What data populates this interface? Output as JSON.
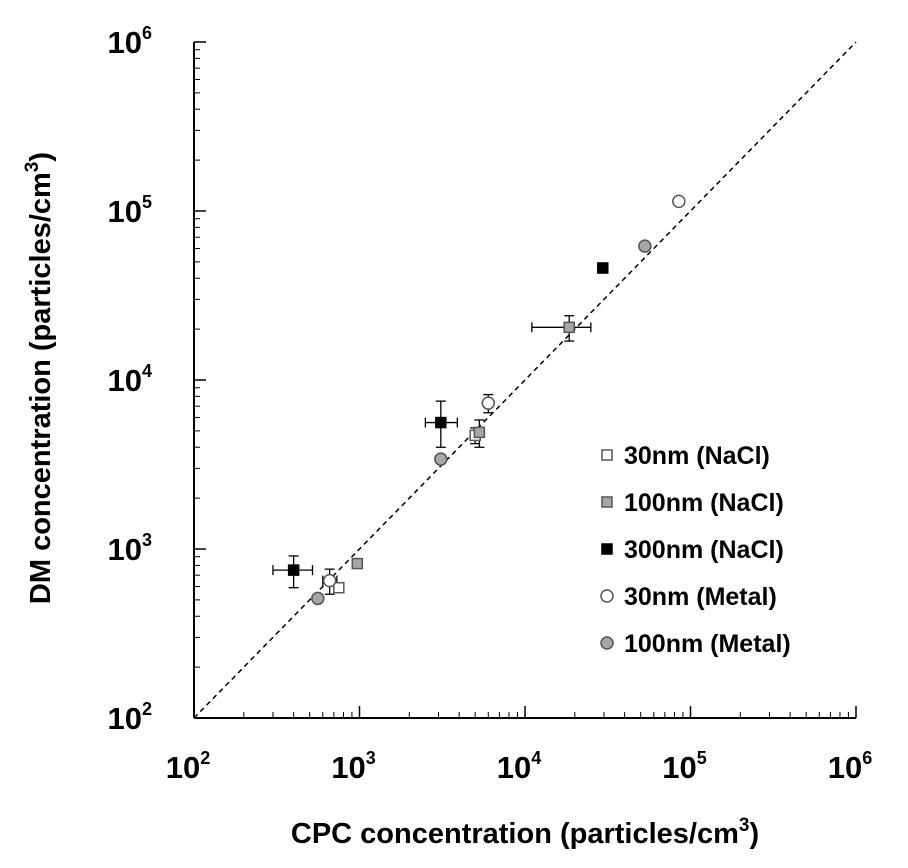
{
  "chart_data": {
    "type": "scatter",
    "xlabel": "CPC concentration (particles/cm3)",
    "ylabel": "DM concentration (particles/cm3)",
    "xlabel_parts": {
      "text": "CPC concentration (particles/cm",
      "sup": "3",
      "tail": ")"
    },
    "ylabel_parts": {
      "text": "DM concentration (particles/cm",
      "sup": "3",
      "tail": ")"
    },
    "xscale": "log",
    "yscale": "log",
    "xlim": [
      100,
      1000000
    ],
    "ylim": [
      100,
      1000000
    ],
    "xticks": [
      {
        "base": "10",
        "exp": "2"
      },
      {
        "base": "10",
        "exp": "3"
      },
      {
        "base": "10",
        "exp": "4"
      },
      {
        "base": "10",
        "exp": "5"
      },
      {
        "base": "10",
        "exp": "6"
      }
    ],
    "yticks": [
      {
        "base": "10",
        "exp": "2"
      },
      {
        "base": "10",
        "exp": "3"
      },
      {
        "base": "10",
        "exp": "4"
      },
      {
        "base": "10",
        "exp": "5"
      },
      {
        "base": "10",
        "exp": "6"
      }
    ],
    "grid": false,
    "legend_position": "right",
    "reference_line": {
      "style": "dashed",
      "from": [
        100,
        100
      ],
      "to": [
        1000000,
        1000000
      ]
    },
    "series": [
      {
        "name": "30nm (NaCl)",
        "marker": "square",
        "fill": "#ffffff",
        "stroke": "#555555",
        "points": [
          {
            "x": 750,
            "y": 590
          },
          {
            "x": 5000,
            "y": 4700,
            "yerr": [
              4200,
              5200
            ]
          }
        ]
      },
      {
        "name": "100nm (NaCl)",
        "marker": "square",
        "fill": "#a6a6a6",
        "stroke": "#555555",
        "points": [
          {
            "x": 970,
            "y": 820
          },
          {
            "x": 5300,
            "y": 4900,
            "yerr": [
              4000,
              5800
            ]
          },
          {
            "x": 18500,
            "y": 20500,
            "xerr": [
              11000,
              25000
            ],
            "yerr": [
              17000,
              24000
            ]
          }
        ]
      },
      {
        "name": "300nm (NaCl)",
        "marker": "square",
        "fill": "#000000",
        "stroke": "#000000",
        "points": [
          {
            "x": 400,
            "y": 750,
            "xerr": [
              300,
              520
            ],
            "yerr": [
              590,
              910
            ]
          },
          {
            "x": 3100,
            "y": 5600,
            "xerr": [
              2500,
              3900
            ],
            "yerr": [
              4000,
              7500
            ]
          },
          {
            "x": 29500,
            "y": 46000,
            "yerr": [
              43000,
              49000
            ]
          }
        ]
      },
      {
        "name": "30nm (Metal)",
        "marker": "circle",
        "fill": "#ffffff",
        "stroke": "#555555",
        "points": [
          {
            "x": 660,
            "y": 650,
            "xerr": [
              600,
              730
            ],
            "yerr": [
              540,
              760
            ]
          },
          {
            "x": 6000,
            "y": 7300,
            "yerr": [
              6400,
              8200
            ]
          },
          {
            "x": 85000,
            "y": 114000
          }
        ]
      },
      {
        "name": "100nm (Metal)",
        "marker": "circle",
        "fill": "#a6a6a6",
        "stroke": "#555555",
        "points": [
          {
            "x": 560,
            "y": 510
          },
          {
            "x": 3100,
            "y": 3400
          },
          {
            "x": 53000,
            "y": 62000
          }
        ]
      }
    ]
  }
}
